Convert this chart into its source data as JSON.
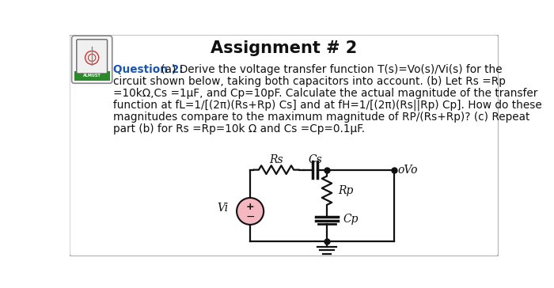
{
  "title": "Assignment # 2",
  "background_color": "#ffffff",
  "border_color": "#b0b0b0",
  "question_color": "#1a56b0",
  "text_color": "#111111",
  "question_label": "Question 2:",
  "q_line1": " (a) Derive the voltage transfer function T(s)=Vo(s)/Vi(s) for the",
  "q_line2": "circuit shown below, taking both capacitors into account. (b) Let Rs =Rp",
  "q_line3": "=10kΩ,Cs =1μF, and Cp=10pF. Calculate the actual magnitude of the transfer",
  "q_line4": "function at fL=1/[(2π)(Rs+Rp) Cs] and at fH=1/[(2π)(Rs||Rp) Cp]. How do these",
  "q_line5": "magnitudes compare to the maximum magnitude of RP/(Rs+Rp)? (c) Repeat",
  "q_line6": "part (b) for Rs =Rp=10k Ω and Cs =Cp=0.1μF.",
  "lbl_Rs": "Rs",
  "lbl_Cs": "Cs",
  "lbl_Vi": "Vi",
  "lbl_Rp": "Rp",
  "lbl_Cp": "Cp",
  "lbl_Vo": "oVo",
  "src_color": "#f5b8c0",
  "wire_color": "#111111",
  "lw": 1.6
}
